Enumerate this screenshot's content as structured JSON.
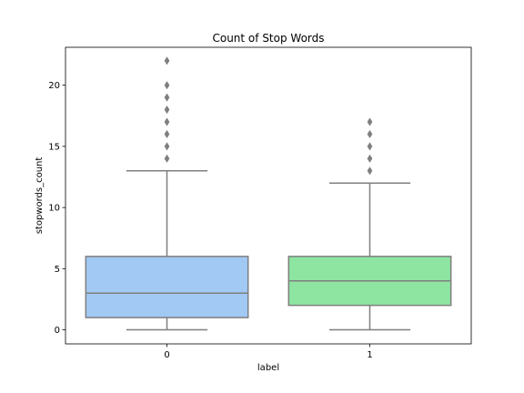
{
  "chart_data": {
    "type": "box",
    "title": "Count of Stop Words",
    "xlabel": "label",
    "ylabel": "stopwords_count",
    "categories": [
      "0",
      "1"
    ],
    "ylim": [
      -1.15,
      23.1
    ],
    "yticks": [
      0,
      5,
      10,
      15,
      20
    ],
    "grid": false,
    "boxes": [
      {
        "category": "0",
        "whisker_low": 0,
        "q1": 1,
        "median": 3,
        "q3": 6,
        "whisker_high": 13,
        "outliers": [
          14,
          15,
          16,
          17,
          18,
          19,
          20,
          22
        ],
        "color": "#a1c9f4"
      },
      {
        "category": "1",
        "whisker_low": 0,
        "q1": 2,
        "median": 4,
        "q3": 6,
        "whisker_high": 12,
        "outliers": [
          13,
          14,
          15,
          16,
          17
        ],
        "color": "#8de5a1"
      }
    ],
    "line_color": "#7f7f7f"
  }
}
